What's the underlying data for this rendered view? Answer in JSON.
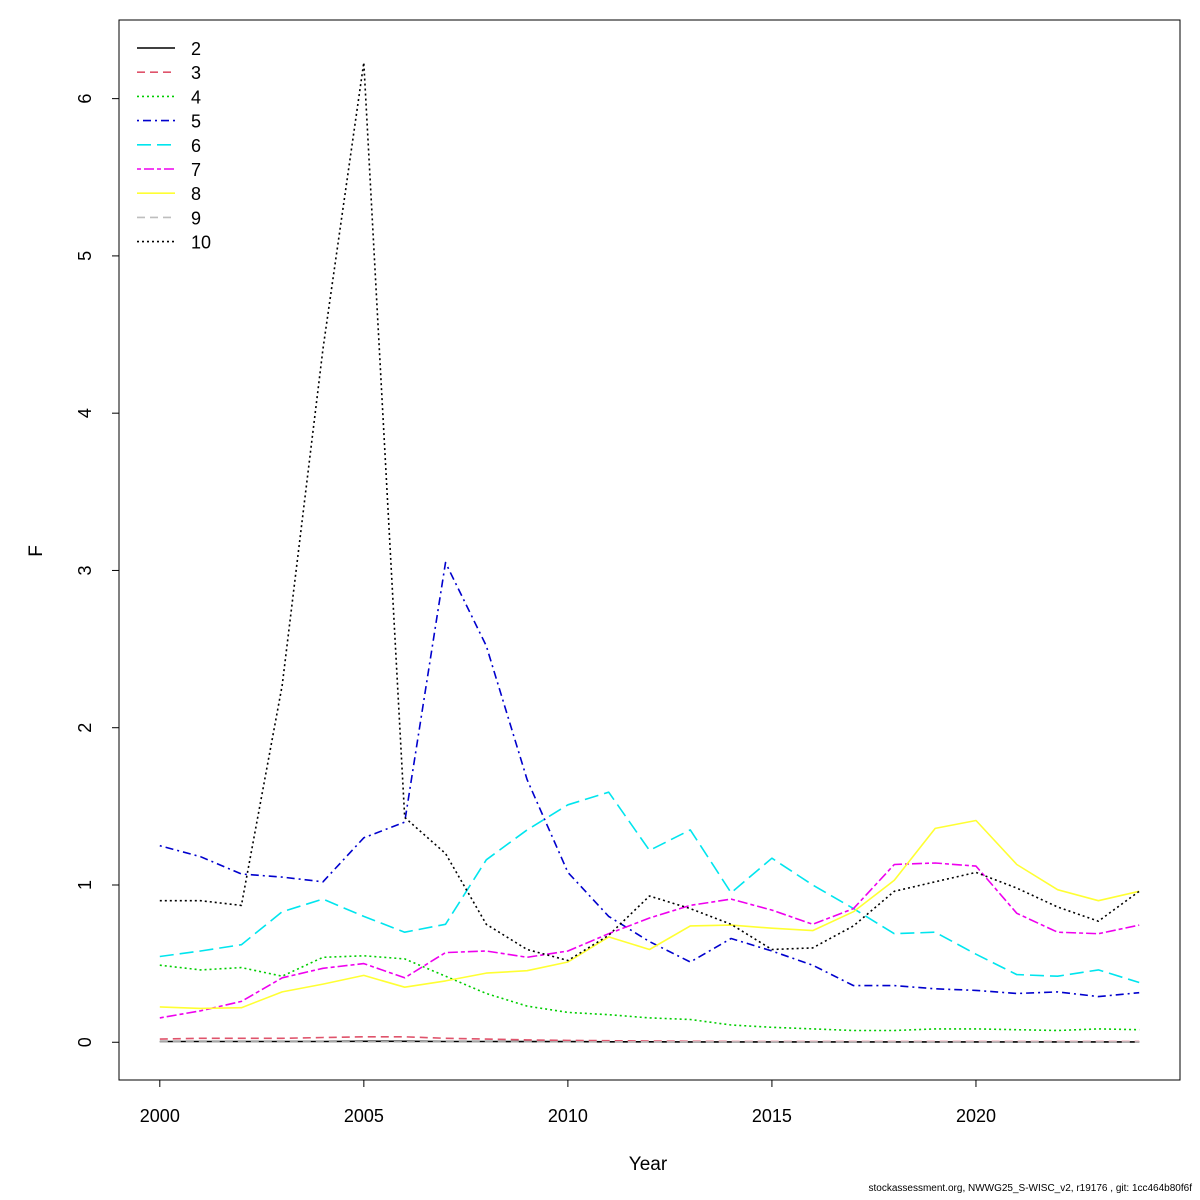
{
  "chart_data": {
    "type": "line",
    "xlabel": "Year",
    "ylabel": "F",
    "xlim": [
      1999,
      2025
    ],
    "ylim": [
      -0.24,
      6.5
    ],
    "x_ticks": [
      "2000",
      "2005",
      "2010",
      "2015",
      "2020"
    ],
    "y_ticks": [
      "0",
      "1",
      "2",
      "3",
      "4",
      "5",
      "6"
    ],
    "x": [
      2000,
      2001,
      2002,
      2003,
      2004,
      2005,
      2006,
      2007,
      2008,
      2009,
      2010,
      2011,
      2012,
      2013,
      2014,
      2015,
      2016,
      2017,
      2018,
      2019,
      2020,
      2021,
      2022,
      2023,
      2024
    ],
    "legend_position": "top-left",
    "series": [
      {
        "name": "2",
        "color": "#000000",
        "dash": "solid",
        "values": [
          0.005,
          0.005,
          0.005,
          0.005,
          0.005,
          0.006,
          0.006,
          0.005,
          0.005,
          0.004,
          0.004,
          0.003,
          0.003,
          0.002,
          0.002,
          0.002,
          0.002,
          0.002,
          0.002,
          0.002,
          0.002,
          0.002,
          0.002,
          0.002,
          0.002
        ]
      },
      {
        "name": "3",
        "color": "#DF536B",
        "dash": "dashed",
        "values": [
          0.02,
          0.025,
          0.025,
          0.025,
          0.03,
          0.035,
          0.035,
          0.025,
          0.02,
          0.015,
          0.012,
          0.01,
          0.008,
          0.006,
          0.005,
          0.005,
          0.005,
          0.005,
          0.005,
          0.005,
          0.005,
          0.005,
          0.005,
          0.005,
          0.005
        ]
      },
      {
        "name": "4",
        "color": "#00CD00",
        "dash": "dotted",
        "values": [
          0.49,
          0.46,
          0.475,
          0.42,
          0.54,
          0.55,
          0.53,
          0.42,
          0.31,
          0.23,
          0.19,
          0.175,
          0.155,
          0.145,
          0.11,
          0.095,
          0.085,
          0.075,
          0.075,
          0.085,
          0.085,
          0.08,
          0.075,
          0.085,
          0.08
        ]
      },
      {
        "name": "5",
        "color": "#0000CD",
        "dash": "dotdash",
        "values": [
          1.25,
          1.18,
          1.07,
          1.05,
          1.02,
          1.3,
          1.4,
          3.05,
          2.52,
          1.67,
          1.08,
          0.8,
          0.64,
          0.51,
          0.66,
          0.58,
          0.49,
          0.36,
          0.36,
          0.34,
          0.33,
          0.31,
          0.32,
          0.29,
          0.315
        ]
      },
      {
        "name": "6",
        "color": "#00E5EE",
        "dash": "longdash",
        "values": [
          0.545,
          0.58,
          0.62,
          0.83,
          0.91,
          0.8,
          0.7,
          0.75,
          1.16,
          1.35,
          1.51,
          1.59,
          1.22,
          1.35,
          0.95,
          1.17,
          1.0,
          0.85,
          0.69,
          0.7,
          0.56,
          0.43,
          0.42,
          0.46,
          0.38
        ]
      },
      {
        "name": "7",
        "color": "#EE00EE",
        "dash": "twodash",
        "values": [
          0.155,
          0.2,
          0.26,
          0.41,
          0.47,
          0.5,
          0.41,
          0.57,
          0.58,
          0.54,
          0.58,
          0.69,
          0.79,
          0.87,
          0.91,
          0.84,
          0.75,
          0.85,
          1.13,
          1.14,
          1.12,
          0.82,
          0.7,
          0.69,
          0.745
        ]
      },
      {
        "name": "8",
        "color": "#FFFF33",
        "dash": "solid",
        "values": [
          0.225,
          0.215,
          0.22,
          0.32,
          0.37,
          0.425,
          0.35,
          0.39,
          0.44,
          0.455,
          0.51,
          0.67,
          0.59,
          0.74,
          0.745,
          0.725,
          0.71,
          0.83,
          1.03,
          1.36,
          1.41,
          1.13,
          0.97,
          0.9,
          0.96
        ]
      },
      {
        "name": "9",
        "color": "#BEBEBE",
        "dash": "dashed",
        "values": [
          0.002,
          0.002,
          0.002,
          0.002,
          0.002,
          0.002,
          0.002,
          0.002,
          0.002,
          0.002,
          0.002,
          0.002,
          0.002,
          0.002,
          0.002,
          0.002,
          0.002,
          0.002,
          0.002,
          0.002,
          0.002,
          0.002,
          0.002,
          0.002,
          0.002
        ]
      },
      {
        "name": "10",
        "color": "#000000",
        "dash": "dotted",
        "values": [
          0.9,
          0.9,
          0.87,
          2.27,
          4.41,
          6.23,
          1.43,
          1.2,
          0.75,
          0.59,
          0.52,
          0.68,
          0.93,
          0.85,
          0.75,
          0.59,
          0.6,
          0.74,
          0.96,
          1.02,
          1.08,
          0.98,
          0.86,
          0.77,
          0.96
        ]
      }
    ]
  },
  "footer": {
    "text": "stockassessment.org, NWWG25_S-WISC_v2, r19176 , git: 1cc464b80f6f"
  }
}
